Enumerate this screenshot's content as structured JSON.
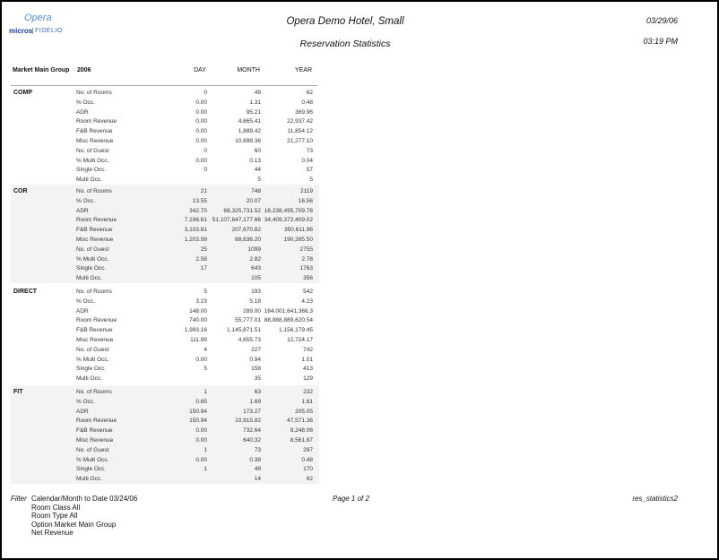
{
  "logo": {
    "opera": "Opera",
    "micros": "micros",
    "fidelio": "FIDELIO"
  },
  "header": {
    "title": "Opera Demo Hotel, Small",
    "subtitle": "Reservation Statistics",
    "date": "03/29/06",
    "time": "03:19 PM"
  },
  "columns": {
    "group": "Market Main Group",
    "year": "2006",
    "day": "DAY",
    "month": "MONTH",
    "ytd": "YEAR"
  },
  "groups": [
    {
      "name": "COMP",
      "shaded": false,
      "rows": [
        [
          "No. of Rooms",
          "0",
          "49",
          "62"
        ],
        [
          "% Occ.",
          "0.00",
          "1.31",
          "0.48"
        ],
        [
          "ADR",
          "0.00",
          "95.21",
          "369.96"
        ],
        [
          "Room Revenue",
          "0.00",
          "4,665.41",
          "22,937.42"
        ],
        [
          "F&B Revenue",
          "0.00",
          "1,889.42",
          "11,854.12"
        ],
        [
          "Misc Revenue",
          "0.00",
          "10,899.36",
          "21,277.10"
        ],
        [
          "No. of Guest",
          "0",
          "60",
          "73"
        ],
        [
          "% Multi Occ.",
          "0.00",
          "0.13",
          "0.04"
        ],
        [
          "Single Occ.",
          "0",
          "44",
          "57"
        ],
        [
          "Multi Occ.",
          "",
          "5",
          "5"
        ]
      ]
    },
    {
      "name": "COR",
      "shaded": true,
      "rows": [
        [
          "No. of Rooms",
          "21",
          "748",
          "2119"
        ],
        [
          "% Occ.",
          "13.55",
          "20.07",
          "16.56"
        ],
        [
          "ADR",
          "342.70",
          "68,325,731.52",
          "16,238,495,709.78"
        ],
        [
          "Room Revenue",
          "7,196.61",
          "51,107,647,177.66",
          "34,409,372,409.02"
        ],
        [
          "F&B Revenue",
          "3,103.81",
          "207,670.82",
          "350,611.96"
        ],
        [
          "Misc Revenue",
          "1,203.99",
          "68,636.20",
          "190,395.50"
        ],
        [
          "No. of Guest",
          "25",
          "1099",
          "2755"
        ],
        [
          "% Multi Occ.",
          "2.58",
          "2.82",
          "2.78"
        ],
        [
          "Single Occ.",
          "17",
          "643",
          "1763"
        ],
        [
          "Multi Occ.",
          "",
          "105",
          "356"
        ]
      ]
    },
    {
      "name": "DIRECT",
      "shaded": false,
      "rows": [
        [
          "No. of Rooms",
          "5",
          "193",
          "542"
        ],
        [
          "% Occ.",
          "3.23",
          "5.18",
          "4.23"
        ],
        [
          "ADR",
          "148.00",
          "289.00",
          "164,001,641,366.3"
        ],
        [
          "Room Revenue",
          "740.00",
          "55,777.01",
          "88,888,889,620.54"
        ],
        [
          "F&B Revenue",
          "1,993.16",
          "1,145,871.51",
          "1,156,179.45"
        ],
        [
          "Misc Revenue",
          "111.99",
          "4,655.73",
          "12,724.17"
        ],
        [
          "No. of Guest",
          "4",
          "227",
          "742"
        ],
        [
          "% Multi Occ.",
          "0.00",
          "0.94",
          "1.01"
        ],
        [
          "Single Occ.",
          "5",
          "158",
          "413"
        ],
        [
          "Multi Occ.",
          "",
          "35",
          "129"
        ]
      ]
    },
    {
      "name": "FIT",
      "shaded": true,
      "rows": [
        [
          "No. of Rooms",
          "1",
          "63",
          "232"
        ],
        [
          "% Occ.",
          "0.65",
          "1.69",
          "1.81"
        ],
        [
          "ADR",
          "150.94",
          "173.27",
          "205.05"
        ],
        [
          "Room Revenue",
          "150.94",
          "10,915.82",
          "47,571.36"
        ],
        [
          "F&B Revenue",
          "0.00",
          "732.64",
          "8,248.06"
        ],
        [
          "Misc Revenue",
          "0.00",
          "640.32",
          "8,561.87"
        ],
        [
          "No. of Guest",
          "1",
          "73",
          "297"
        ],
        [
          "% Multi Occ.",
          "0.00",
          "0.38",
          "0.48"
        ],
        [
          "Single Occ.",
          "1",
          "49",
          "170"
        ],
        [
          "Multi Occ.",
          "",
          "14",
          "62"
        ]
      ]
    }
  ],
  "footer": {
    "filter_label": "Filter",
    "filters": [
      "Calendar/Month to Date  03/24/06",
      "Room Class All",
      "Room Type All",
      "Option Market Main Group",
      "Net Revenue"
    ],
    "page": "Page 1 of 2",
    "report_name": "res_statistics2"
  }
}
